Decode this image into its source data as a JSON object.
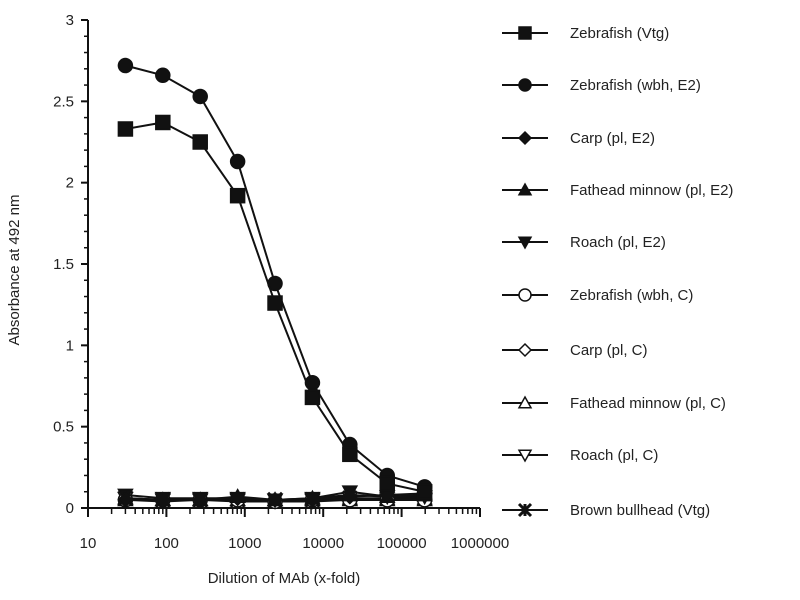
{
  "chart_data": {
    "type": "line",
    "xlabel": "Dilution of MAb (x-fold)",
    "ylabel": "Absorbance at  492 nm",
    "xscale": "log",
    "xlim": [
      10,
      1000000
    ],
    "ylim": [
      0,
      3
    ],
    "xticks": [
      "10",
      "100",
      "1000",
      "10000",
      "100000",
      "1000000"
    ],
    "yticks": [
      "0",
      "0.5",
      "1",
      "1.5",
      "2",
      "2.5",
      "3"
    ],
    "grid": false,
    "legend_position": "right",
    "x": [
      30,
      90,
      270,
      810,
      2430,
      7290,
      21870,
      65610,
      196830
    ],
    "series": [
      {
        "name": "Zebrafish (Vtg)",
        "marker": "square",
        "filled": true,
        "values": [
          2.33,
          2.37,
          2.25,
          1.92,
          1.26,
          0.68,
          0.33,
          0.15,
          0.1
        ]
      },
      {
        "name": "Zebrafish (wbh, E2)",
        "marker": "circle",
        "filled": true,
        "values": [
          2.72,
          2.66,
          2.53,
          2.13,
          1.38,
          0.77,
          0.39,
          0.2,
          0.13
        ]
      },
      {
        "name": "Carp (pl, E2)",
        "marker": "diamond",
        "filled": true,
        "values": [
          0.05,
          0.05,
          0.05,
          0.06,
          0.05,
          0.05,
          0.07,
          0.08,
          0.09
        ]
      },
      {
        "name": "Fathead minnow (pl, E2)",
        "marker": "triangle-up",
        "filled": true,
        "values": [
          0.06,
          0.05,
          0.05,
          0.07,
          0.05,
          0.06,
          0.08,
          0.07,
          0.08
        ]
      },
      {
        "name": "Roach (pl, E2)",
        "marker": "triangle-down",
        "filled": true,
        "values": [
          0.08,
          0.06,
          0.06,
          0.06,
          0.05,
          0.06,
          0.1,
          0.07,
          0.07
        ]
      },
      {
        "name": "Zebrafish (wbh, C)",
        "marker": "circle",
        "filled": false,
        "values": [
          0.05,
          0.05,
          0.05,
          0.05,
          0.04,
          0.05,
          0.05,
          0.05,
          0.05
        ]
      },
      {
        "name": "Carp (pl, C)",
        "marker": "diamond",
        "filled": false,
        "values": [
          0.05,
          0.04,
          0.05,
          0.04,
          0.04,
          0.04,
          0.05,
          0.05,
          0.05
        ]
      },
      {
        "name": "Fathead minnow (pl, C)",
        "marker": "triangle-up",
        "filled": false,
        "values": [
          0.05,
          0.05,
          0.05,
          0.05,
          0.05,
          0.05,
          0.05,
          0.05,
          0.05
        ]
      },
      {
        "name": "Roach (pl, C)",
        "marker": "triangle-down",
        "filled": false,
        "values": [
          0.06,
          0.05,
          0.05,
          0.05,
          0.05,
          0.05,
          0.06,
          0.05,
          0.05
        ]
      },
      {
        "name": "Brown bullhead (Vtg)",
        "marker": "star",
        "filled": true,
        "values": [
          0.06,
          0.05,
          0.05,
          0.05,
          0.05,
          0.05,
          0.06,
          0.06,
          0.06
        ]
      }
    ]
  }
}
